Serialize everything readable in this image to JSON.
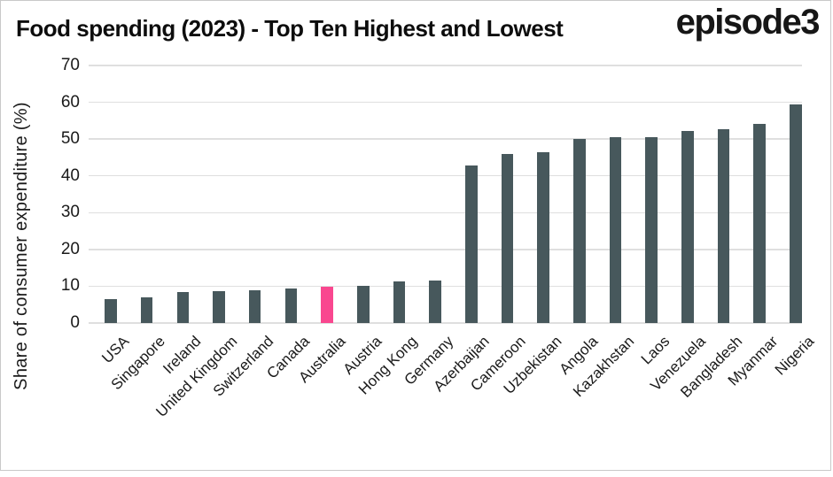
{
  "header": {
    "title": "Food spending (2023) - Top Ten Highest and Lowest",
    "logo": "episode3"
  },
  "colors": {
    "bar": "#47585C",
    "highlight": "#F9478F",
    "gridline": "#DFDFDF",
    "text": "#1A1A1A",
    "frame_border": "#C9C9C9"
  },
  "chart_data": {
    "type": "bar",
    "title": "Food spending (2023) - Top Ten Highest and Lowest",
    "xlabel": "",
    "ylabel": "Share of consumer expenditure (%)",
    "ylim": [
      0,
      70
    ],
    "yticks": [
      0,
      10,
      20,
      30,
      40,
      50,
      60,
      70
    ],
    "grid": "horizontal",
    "legend": "none",
    "categories": [
      "USA",
      "Singapore",
      "Ireland",
      "United Kingdom",
      "Switzerland",
      "Canada",
      "Australia",
      "Austria",
      "Hong Kong",
      "Germany",
      "Azerbaijan",
      "Cameroon",
      "Uzbekistan",
      "Angola",
      "Kazakhstan",
      "Laos",
      "Venezuela",
      "Bangladesh",
      "Myanmar",
      "Nigeria"
    ],
    "values": [
      6.6,
      6.9,
      8.5,
      8.6,
      8.9,
      9.5,
      9.9,
      10.0,
      11.4,
      11.5,
      42.8,
      45.9,
      46.5,
      50.1,
      50.4,
      50.5,
      52.1,
      52.8,
      54.1,
      59.4
    ],
    "highlight_category": "Australia",
    "series": [
      {
        "name": "Share of consumer expenditure (%)",
        "values": [
          6.6,
          6.9,
          8.5,
          8.6,
          8.9,
          9.5,
          9.9,
          10.0,
          11.4,
          11.5,
          42.8,
          45.9,
          46.5,
          50.1,
          50.4,
          50.5,
          52.1,
          52.8,
          54.1,
          59.4
        ]
      }
    ]
  }
}
